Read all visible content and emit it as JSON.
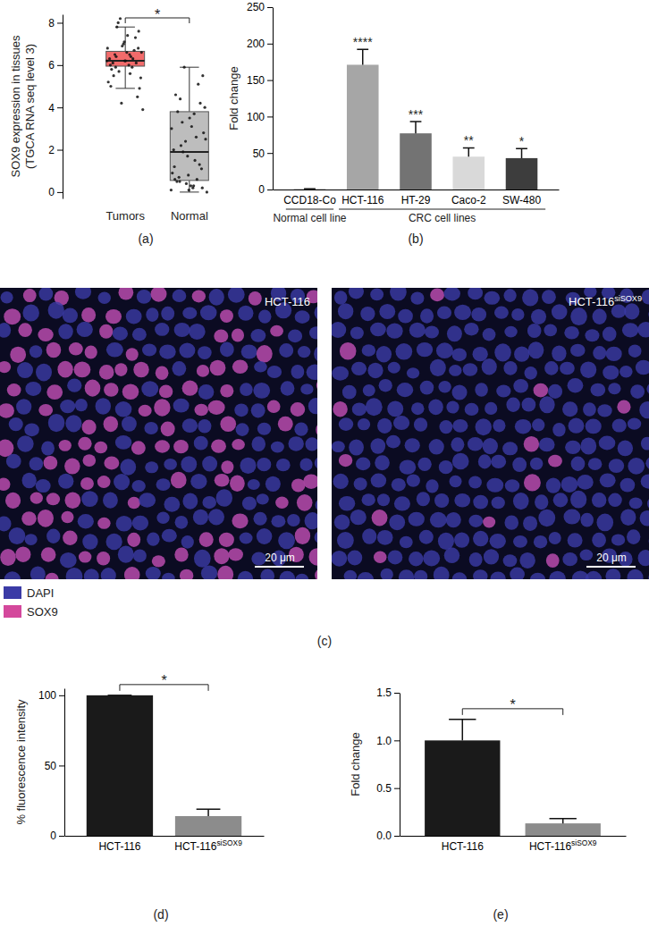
{
  "chart_data": [
    {
      "type": "box",
      "panel": "(a)",
      "categories": [
        "Tumors",
        "Normal"
      ],
      "boxes": [
        {
          "min": 4.9,
          "q1": 5.95,
          "median": 6.2,
          "q3": 6.65,
          "max": 7.8
        },
        {
          "min": 0,
          "q1": 0.55,
          "median": 1.9,
          "q3": 3.8,
          "max": 5.9
        }
      ],
      "points": [
        [
          6.2,
          6.5,
          5.9,
          6.8,
          7.1,
          6.0,
          6.3,
          5.7,
          6.6,
          7.4,
          5.5,
          6.1,
          6.9,
          5.2,
          6.4,
          7.8,
          4.9,
          6.2,
          5.8,
          6.7,
          8.2,
          3.9,
          6.0,
          6.5,
          4.5,
          7.0,
          6.3,
          5.9,
          8.0,
          5.4,
          6.6,
          6.1,
          7.3,
          4.2,
          6.8,
          5.6,
          6.4,
          7.6,
          6.2,
          5.0
        ],
        [
          0.1,
          0.3,
          0.5,
          0.2,
          0.8,
          1.2,
          0.6,
          1.9,
          2.5,
          3.1,
          3.8,
          4.2,
          0.4,
          0.9,
          1.5,
          2.2,
          2.8,
          3.5,
          4.6,
          5.1,
          5.9,
          0.0,
          0.2,
          0.7,
          1.1,
          1.7,
          2.0,
          2.6,
          3.3,
          4.0,
          0.3,
          0.5,
          1.3,
          2.4,
          3.0,
          3.7,
          4.4,
          5.5,
          0.1,
          0.6
        ]
      ],
      "colors": [
        "#f26b6b",
        "#bdbdbd"
      ],
      "ylabel": [
        "SOX9 expression in tissues",
        "(TGCA RNA seq level 3)"
      ],
      "ylim": [
        -0.3,
        8.4
      ],
      "yticks": [
        0,
        2,
        4,
        6,
        8
      ],
      "annotations": [
        "*"
      ]
    },
    {
      "type": "bar",
      "panel": "(b)",
      "categories": [
        "CCD18-Co",
        "HCT-116",
        "HT-29",
        "Caco-2",
        "SW-480"
      ],
      "values": [
        1,
        171,
        77,
        45,
        43
      ],
      "errors": [
        0,
        21,
        16,
        12,
        13
      ],
      "colors": [
        "#bfbfbf",
        "#a6a6a6",
        "#737373",
        "#d9d9d9",
        "#3d3d3d"
      ],
      "significance": [
        null,
        "****",
        "***",
        "**",
        "*"
      ],
      "groups": [
        {
          "label": "Normal cell line",
          "categories": [
            "CCD18-Co"
          ]
        },
        {
          "label": "CRC cell lines",
          "categories": [
            "HCT-116",
            "HT-29",
            "Caco-2",
            "SW-480"
          ]
        }
      ],
      "ylabel": "Fold change",
      "ylim": [
        0,
        250
      ],
      "yticks": [
        0,
        50,
        100,
        150,
        200,
        250
      ]
    },
    {
      "type": "image",
      "panel": "(c)",
      "images": [
        {
          "label": "HCT-116",
          "scale_bar": "20 μm"
        },
        {
          "label": "HCT-116siSOX9",
          "scale_bar": "20 μm"
        }
      ],
      "channels": [
        {
          "name": "DAPI",
          "color": "#3b3ba6"
        },
        {
          "name": "SOX9",
          "color": "#d4489c"
        }
      ]
    },
    {
      "type": "bar",
      "panel": "(d)",
      "categories": [
        "HCT-116",
        "HCT-116siSOX9"
      ],
      "values": [
        100,
        14
      ],
      "errors": [
        0,
        5
      ],
      "colors": [
        "#1a1a1a",
        "#8c8c8c"
      ],
      "ylabel": "% fluorescence intensity",
      "ylim": [
        0,
        105
      ],
      "yticks": [
        0,
        50,
        100
      ],
      "annotations": [
        "*"
      ]
    },
    {
      "type": "bar",
      "panel": "(e)",
      "categories": [
        "HCT-116",
        "HCT-116siSOX9"
      ],
      "values": [
        1.0,
        0.13
      ],
      "errors": [
        0.22,
        0.05
      ],
      "colors": [
        "#1a1a1a",
        "#8c8c8c"
      ],
      "ylabel": "Fold change",
      "ylim": [
        0,
        1.5
      ],
      "yticks": [
        {
          "value": 0,
          "label": "0.0"
        },
        {
          "value": 0.5,
          "label": "0.5"
        },
        {
          "value": 1,
          "label": "1.0"
        },
        {
          "value": 1.5,
          "label": "1.5"
        }
      ],
      "annotations": [
        "*"
      ]
    }
  ]
}
